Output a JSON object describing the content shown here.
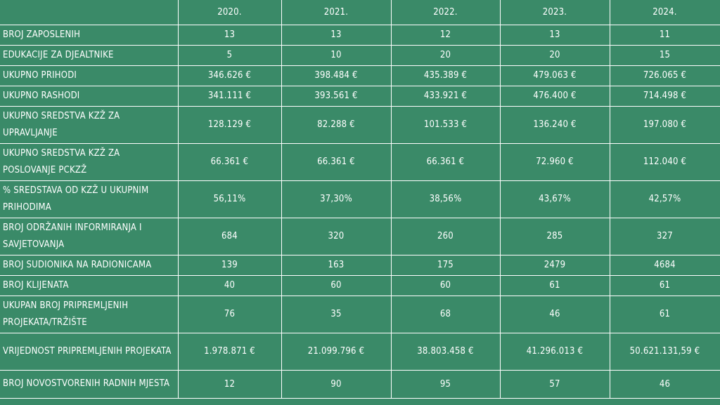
{
  "table": {
    "columns": [
      "2020.",
      "2021.",
      "2022.",
      "2023.",
      "2024."
    ],
    "rows": [
      {
        "label": "BROJ  ZAPOSLENIH",
        "values": [
          "13",
          "13",
          "12",
          "13",
          "11"
        ]
      },
      {
        "label": "EDUKACIJE  ZA DJEALTNIKE",
        "values": [
          "5",
          "10",
          "20",
          "20",
          "15"
        ]
      },
      {
        "label": "UKUPNO PRIHODI",
        "values": [
          "346.626 €",
          "398.484 €",
          "435.389 €",
          "479.063 €",
          "726.065 €"
        ]
      },
      {
        "label": "UKUPNO RASHODI",
        "values": [
          "341.111 €",
          "393.561 €",
          "433.921 €",
          "476.400 €",
          "714.498 €"
        ]
      },
      {
        "label": "UKUPNO SREDSTVA KZŽ ZA UPRAVLJANJE",
        "values": [
          "128.129 €",
          "82.288 €",
          "101.533 €",
          "136.240 €",
          "197.080 €"
        ]
      },
      {
        "label": "UKUPNO SREDSTVA KZŽ ZA POSLOVANJE PCKZŽ",
        "values": [
          "66.361 €",
          "66.361 €",
          "66.361 €",
          "72.960 €",
          "112.040 €"
        ]
      },
      {
        "label": "% SREDSTAVA OD KZŽ U UKUPNIM PRIHODIMA",
        "values": [
          "56,11%",
          "37,30%",
          "38,56%",
          "43,67%",
          "42,57%"
        ]
      },
      {
        "label": "BROJ ODRŽANIH INFORMIRANJA I SAVJETOVANJA",
        "values": [
          "684",
          "320",
          "260",
          "285",
          "327"
        ]
      },
      {
        "label": "BROJ SUDIONIKA NA RADIONICAMA",
        "values": [
          "139",
          "163",
          "175",
          "2479",
          "4684"
        ]
      },
      {
        "label": "BROJ KLIJENATA",
        "values": [
          "40",
          "60",
          "60",
          "61",
          "61"
        ]
      },
      {
        "label": "UKUPAN BROJ PRIPREMLJENIH PROJEKATA/TRŽIŠTE",
        "values": [
          "76",
          "35",
          "68",
          "46",
          "61"
        ]
      },
      {
        "label": "VRIJEDNOST PRIPREMLJENIH PROJEKATA",
        "values": [
          "1.978.871 €",
          "21.099.796 €",
          "38.803.458 €",
          "41.296.013 €",
          "50.621.131,59 €"
        ]
      },
      {
        "label": "BROJ NOVOSTVORENIH RADNIH MJESTA",
        "values": [
          "12",
          "90",
          "95",
          "57",
          "46"
        ]
      }
    ]
  },
  "colors": {
    "background": "#3a8a68",
    "grid": "#ffffff",
    "text": "#ffffff"
  }
}
